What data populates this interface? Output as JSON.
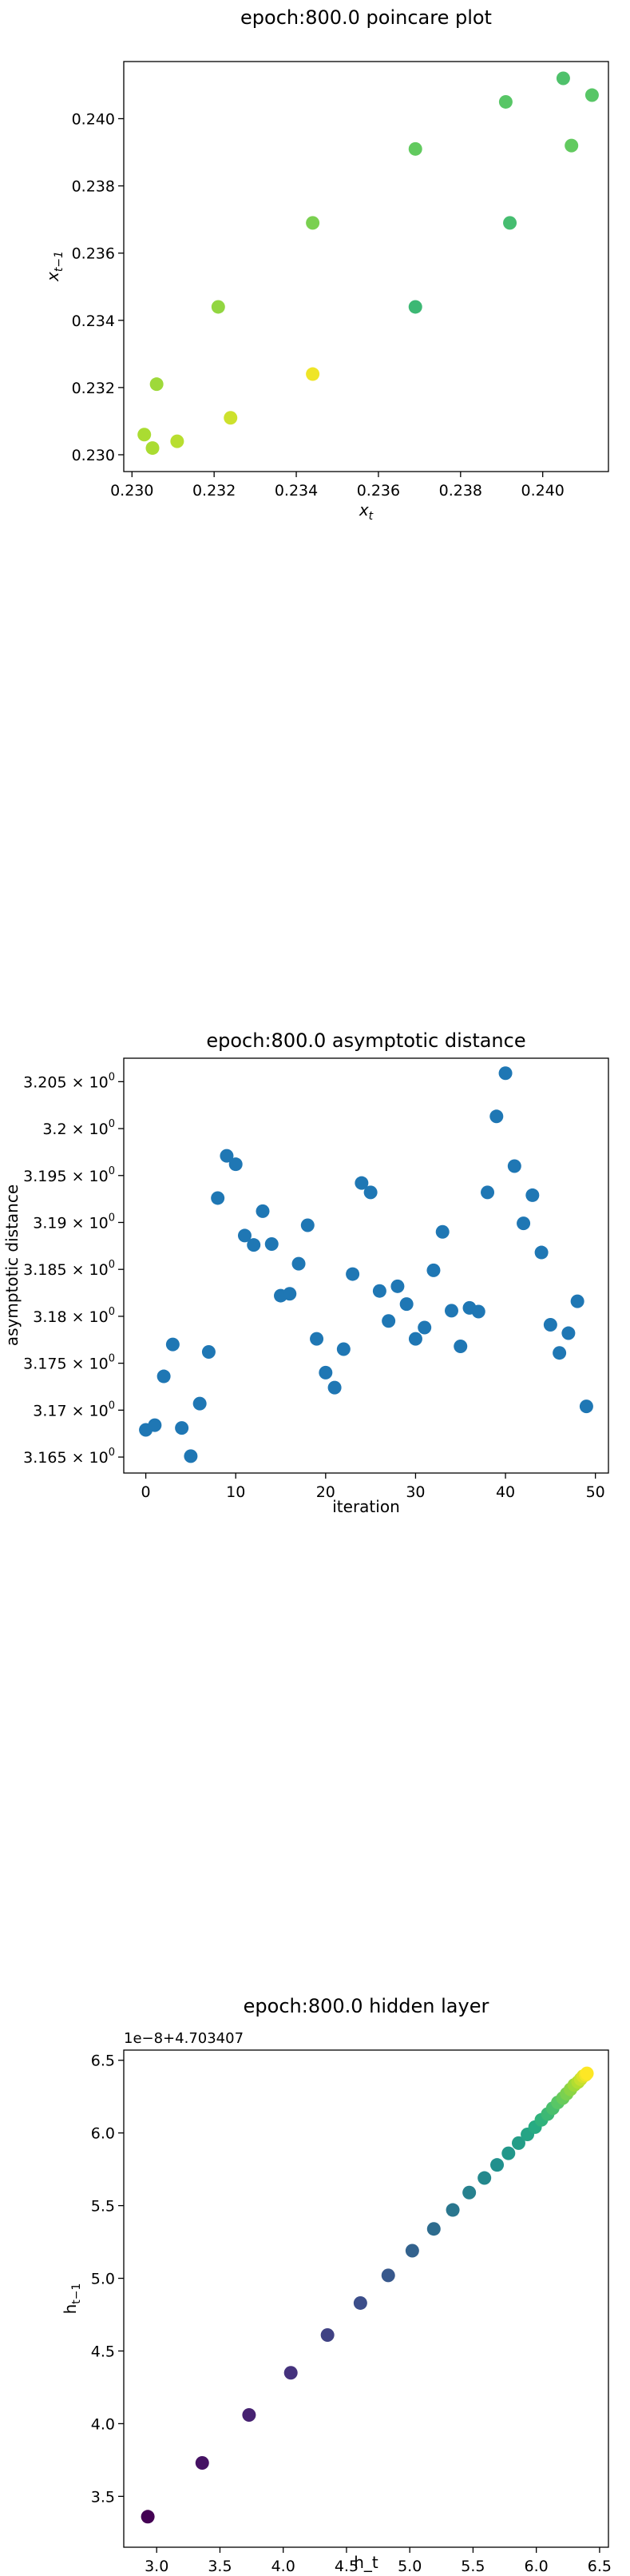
{
  "chart_data": [
    {
      "type": "scatter",
      "title": "epoch:800.0 poincare plot",
      "xlabel": "x_t",
      "ylabel": "x_{t-1}",
      "xlim": [
        0.2298,
        0.2416
      ],
      "ylim": [
        0.2295,
        0.2417
      ],
      "xticks": [
        0.23,
        0.232,
        0.234,
        0.236,
        0.238,
        0.24
      ],
      "yticks": [
        0.23,
        0.232,
        0.234,
        0.236,
        0.238,
        0.24
      ],
      "xtick_labels": [
        "0.230",
        "0.232",
        "0.234",
        "0.236",
        "0.238",
        "0.240"
      ],
      "ytick_labels": [
        "0.230",
        "0.232",
        "0.234",
        "0.236",
        "0.238",
        "0.240"
      ],
      "colormap": "viridis",
      "points": [
        {
          "x": 0.2303,
          "y": 0.2306,
          "c": 0.88
        },
        {
          "x": 0.2305,
          "y": 0.2302,
          "c": 0.88
        },
        {
          "x": 0.2306,
          "y": 0.2321,
          "c": 0.86
        },
        {
          "x": 0.2311,
          "y": 0.2304,
          "c": 0.9
        },
        {
          "x": 0.2324,
          "y": 0.2311,
          "c": 0.93
        },
        {
          "x": 0.2321,
          "y": 0.2344,
          "c": 0.84
        },
        {
          "x": 0.2344,
          "y": 0.2324,
          "c": 0.98
        },
        {
          "x": 0.2344,
          "y": 0.2369,
          "c": 0.8
        },
        {
          "x": 0.2369,
          "y": 0.2344,
          "c": 0.68
        },
        {
          "x": 0.2369,
          "y": 0.2391,
          "c": 0.76
        },
        {
          "x": 0.2392,
          "y": 0.2369,
          "c": 0.7
        },
        {
          "x": 0.2391,
          "y": 0.2405,
          "c": 0.74
        },
        {
          "x": 0.2405,
          "y": 0.2412,
          "c": 0.72
        },
        {
          "x": 0.2407,
          "y": 0.2392,
          "c": 0.76
        },
        {
          "x": 0.2412,
          "y": 0.2407,
          "c": 0.74
        }
      ]
    },
    {
      "type": "scatter",
      "title": "epoch:800.0 asymptotic distance",
      "xlabel": "iteration",
      "ylabel": "asymptotic distance",
      "xlim": [
        -2.45,
        51.45
      ],
      "ylim": [
        3.1633,
        3.2075
      ],
      "xticks": [
        0,
        10,
        20,
        30,
        40,
        50
      ],
      "xtick_labels": [
        "0",
        "10",
        "20",
        "30",
        "40",
        "50"
      ],
      "yticks": [
        3.165,
        3.17,
        3.175,
        3.18,
        3.185,
        3.19,
        3.195,
        3.2,
        3.205
      ],
      "ytick_labels": [
        {
          "base": "3.165 × 10",
          "exp": "0"
        },
        {
          "base": "3.17 × 10",
          "exp": "0"
        },
        {
          "base": "3.175 × 10",
          "exp": "0"
        },
        {
          "base": "3.18 × 10",
          "exp": "0"
        },
        {
          "base": "3.185 × 10",
          "exp": "0"
        },
        {
          "base": "3.19 × 10",
          "exp": "0"
        },
        {
          "base": "3.195 × 10",
          "exp": "0"
        },
        {
          "base": "3.2 × 10",
          "exp": "0"
        },
        {
          "base": "3.205 × 10",
          "exp": "0"
        }
      ],
      "color": "#1f77b4",
      "x": [
        0,
        1,
        2,
        3,
        4,
        5,
        6,
        7,
        8,
        9,
        10,
        11,
        12,
        13,
        14,
        15,
        16,
        17,
        18,
        19,
        20,
        21,
        22,
        23,
        24,
        25,
        26,
        27,
        28,
        29,
        30,
        31,
        32,
        33,
        34,
        35,
        36,
        37,
        38,
        39,
        40,
        41,
        42,
        43,
        44,
        45,
        46,
        47,
        48,
        49
      ],
      "y": [
        3.1679,
        3.1684,
        3.1736,
        3.177,
        3.1681,
        3.1651,
        3.1707,
        3.1762,
        3.1926,
        3.1971,
        3.1962,
        3.1886,
        3.1876,
        3.1912,
        3.1877,
        3.1822,
        3.1824,
        3.1856,
        3.1897,
        3.1776,
        3.174,
        3.1724,
        3.1765,
        3.1845,
        3.1942,
        3.1932,
        3.1827,
        3.1795,
        3.1832,
        3.1813,
        3.1776,
        3.1788,
        3.1849,
        3.189,
        3.1806,
        3.1768,
        3.1809,
        3.1805,
        3.1932,
        3.2013,
        3.2059,
        3.196,
        3.1899,
        3.1929,
        3.1868,
        3.1791,
        3.1761,
        3.1782,
        3.1816,
        3.1704
      ]
    },
    {
      "type": "scatter",
      "title": "epoch:800.0 hidden layer",
      "xlabel": "h_t",
      "ylabel": "h_{t-1}",
      "x_offset_label": "1e−8+4.703407",
      "y_offset_label": "1e−8+4.703407",
      "xlim": [
        2.74,
        6.57
      ],
      "ylim": [
        3.15,
        6.57
      ],
      "xticks": [
        3.0,
        3.5,
        4.0,
        4.5,
        5.0,
        5.5,
        6.0,
        6.5
      ],
      "yticks": [
        3.5,
        4.0,
        4.5,
        5.0,
        5.5,
        6.0,
        6.5
      ],
      "xtick_labels": [
        "3.0",
        "3.5",
        "4.0",
        "4.5",
        "5.0",
        "5.5",
        "6.0",
        "6.5"
      ],
      "ytick_labels": [
        "3.5",
        "4.0",
        "4.5",
        "5.0",
        "5.5",
        "6.0",
        "6.5"
      ],
      "colormap": "viridis",
      "points": [
        {
          "x": 2.93,
          "y": 3.36,
          "c": 0.0
        },
        {
          "x": 3.36,
          "y": 3.73,
          "c": 0.05
        },
        {
          "x": 3.73,
          "y": 4.06,
          "c": 0.1
        },
        {
          "x": 4.06,
          "y": 4.35,
          "c": 0.15
        },
        {
          "x": 4.35,
          "y": 4.61,
          "c": 0.2
        },
        {
          "x": 4.61,
          "y": 4.83,
          "c": 0.24
        },
        {
          "x": 4.83,
          "y": 5.02,
          "c": 0.28
        },
        {
          "x": 5.02,
          "y": 5.19,
          "c": 0.32
        },
        {
          "x": 5.19,
          "y": 5.34,
          "c": 0.36
        },
        {
          "x": 5.34,
          "y": 5.47,
          "c": 0.4
        },
        {
          "x": 5.47,
          "y": 5.59,
          "c": 0.44
        },
        {
          "x": 5.59,
          "y": 5.69,
          "c": 0.47
        },
        {
          "x": 5.69,
          "y": 5.78,
          "c": 0.5
        },
        {
          "x": 5.78,
          "y": 5.86,
          "c": 0.53
        },
        {
          "x": 5.86,
          "y": 5.93,
          "c": 0.56
        },
        {
          "x": 5.93,
          "y": 5.99,
          "c": 0.59
        },
        {
          "x": 5.99,
          "y": 6.04,
          "c": 0.62
        },
        {
          "x": 6.04,
          "y": 6.09,
          "c": 0.65
        },
        {
          "x": 6.09,
          "y": 6.13,
          "c": 0.68
        },
        {
          "x": 6.13,
          "y": 6.17,
          "c": 0.71
        },
        {
          "x": 6.17,
          "y": 6.21,
          "c": 0.74
        },
        {
          "x": 6.21,
          "y": 6.24,
          "c": 0.77
        },
        {
          "x": 6.24,
          "y": 6.27,
          "c": 0.8
        },
        {
          "x": 6.27,
          "y": 6.3,
          "c": 0.83
        },
        {
          "x": 6.3,
          "y": 6.33,
          "c": 0.86
        },
        {
          "x": 6.33,
          "y": 6.35,
          "c": 0.89
        },
        {
          "x": 6.35,
          "y": 6.37,
          "c": 0.92
        },
        {
          "x": 6.37,
          "y": 6.39,
          "c": 0.95
        },
        {
          "x": 6.39,
          "y": 6.4,
          "c": 0.98
        },
        {
          "x": 6.4,
          "y": 6.41,
          "c": 1.0
        }
      ]
    }
  ]
}
